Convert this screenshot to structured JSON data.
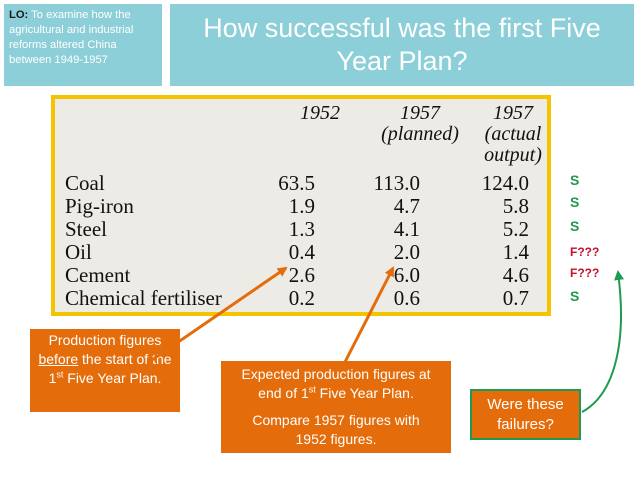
{
  "lo": {
    "label": "LO:",
    "text": " To examine how the agricultural and industrial reforms altered China between 1949-1957"
  },
  "title": "How successful was the first Five Year Plan?",
  "table": {
    "headers": [
      {
        "line1": "1952",
        "line2": "",
        "line3": ""
      },
      {
        "line1": "1957",
        "line2": "(planned)",
        "line3": ""
      },
      {
        "line1": "1957",
        "line2": "(actual",
        "line3": "output)"
      }
    ],
    "rows": [
      {
        "label": "Coal",
        "v1952": "63.5",
        "v1957p": "113.0",
        "v1957a": "124.0"
      },
      {
        "label": "Pig-iron",
        "v1952": "1.9",
        "v1957p": "4.7",
        "v1957a": "5.8"
      },
      {
        "label": "Steel",
        "v1952": "1.3",
        "v1957p": "4.1",
        "v1957a": "5.2"
      },
      {
        "label": "Oil",
        "v1952": "0.4",
        "v1957p": "2.0",
        "v1957a": "1.4"
      },
      {
        "label": "Cement",
        "v1952": "2.6",
        "v1957p": "6.0",
        "v1957a": "4.6"
      },
      {
        "label": "Chemical fertiliser",
        "v1952": "0.2",
        "v1957p": "0.6",
        "v1957a": "0.7"
      }
    ]
  },
  "statuses": [
    "S",
    "S",
    "S",
    "F???",
    "F???",
    "S"
  ],
  "colors": {
    "success": "#1f9a50",
    "fail": "#c8102e",
    "orange": "#e46c0a",
    "teal": "#8ccfd8",
    "frame": "#f5c400"
  },
  "notes": {
    "before": {
      "part1": "Production figures ",
      "underlined": "before",
      "part2": " the start of the 1",
      "sup": "st",
      "part3": "  Five Year Plan."
    },
    "expected": {
      "part1": "Expected production figures at end of 1",
      "sup": "st",
      "part2": " Five Year Plan.",
      "compare": "Compare 1957 figures with 1952 figures."
    },
    "question": "Were these failures?"
  }
}
